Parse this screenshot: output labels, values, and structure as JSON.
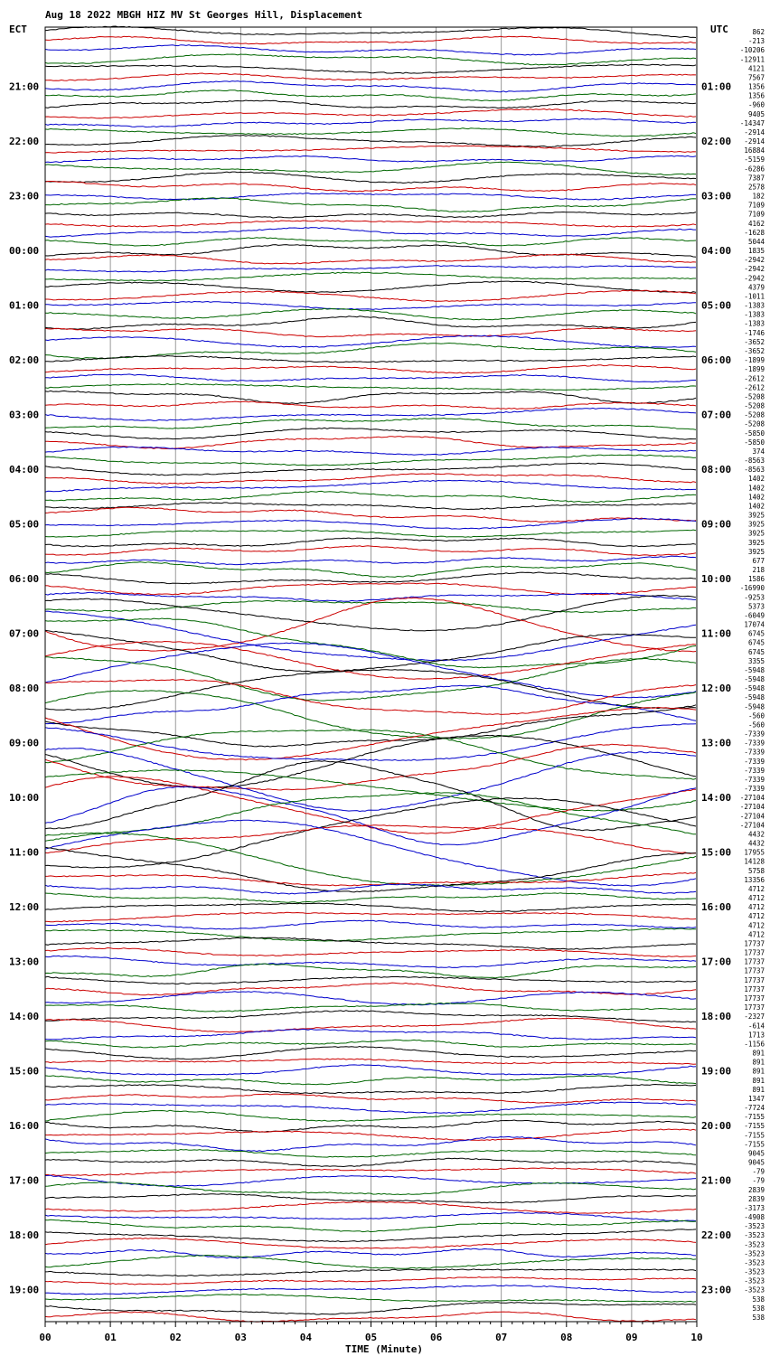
{
  "chart_data": {
    "type": "line",
    "title": "Aug 18 2022 MBGH HIZ MV St Georges Hill, Displacement",
    "xlabel": "TIME (Minute)",
    "x_ticks": [
      "00",
      "01",
      "02",
      "03",
      "04",
      "05",
      "06",
      "07",
      "08",
      "09",
      "10"
    ],
    "xlim": [
      0,
      10
    ],
    "left_axis_label": "ECT",
    "right_axis_label": "UTC",
    "left_time_labels": [
      "21:00",
      "22:00",
      "23:00",
      "00:00",
      "01:00",
      "02:00",
      "03:00",
      "04:00",
      "05:00",
      "06:00",
      "07:00",
      "08:00",
      "09:00",
      "10:00",
      "11:00",
      "12:00",
      "13:00",
      "14:00",
      "15:00",
      "16:00",
      "17:00",
      "18:00",
      "19:00"
    ],
    "right_time_labels": [
      "01:00",
      "02:00",
      "03:00",
      "04:00",
      "05:00",
      "06:00",
      "07:00",
      "08:00",
      "09:00",
      "10:00",
      "11:00",
      "12:00",
      "13:00",
      "14:00",
      "15:00",
      "16:00",
      "17:00",
      "18:00",
      "19:00",
      "20:00",
      "21:00",
      "22:00",
      "23:00"
    ],
    "trace_colors": [
      "#000000",
      "#cc0000",
      "#0000cc",
      "#006600"
    ],
    "trace_offsets": [
      "862",
      "-213",
      "-10206",
      "-12911",
      "4121",
      "7567",
      "1356",
      "1356",
      "-960",
      "9405",
      "-14347",
      "-2914",
      "-2914",
      "16884",
      "-5159",
      "-6286",
      "7387",
      "2578",
      "182",
      "7109",
      "7109",
      "4162",
      "-1628",
      "5044",
      "1835",
      "-2942",
      "-2942",
      "-2942",
      "4379",
      "-1011",
      "-1383",
      "-1383",
      "-1383",
      "-1746",
      "-3652",
      "-3652",
      "-1899",
      "-1899",
      "-2612",
      "-2612",
      "-5208",
      "-5208",
      "-5208",
      "-5208",
      "-5850",
      "-5850",
      "374",
      "-8563",
      "-8563",
      "1402",
      "1402",
      "1402",
      "1402",
      "3925",
      "3925",
      "3925",
      "3925",
      "3925",
      "677",
      "218",
      "1586",
      "-16990",
      "-9253",
      "5373",
      "-6049",
      "17074",
      "6745",
      "6745",
      "6745",
      "3355",
      "-5948",
      "-5948",
      "-5948",
      "-5948",
      "-5948",
      "-560",
      "-560",
      "-7339",
      "-7339",
      "-7339",
      "-7339",
      "-7339",
      "-7339",
      "-7339",
      "-27104",
      "-27104",
      "-27104",
      "-27104",
      "4432",
      "4432",
      "17955",
      "14128",
      "5758",
      "13356",
      "4712",
      "4712",
      "4712",
      "4712",
      "4712",
      "4712",
      "17737",
      "17737",
      "17737",
      "17737",
      "17737",
      "17737",
      "17737",
      "17737",
      "-2327",
      "-614",
      "1713",
      "-1156",
      "891",
      "891",
      "891",
      "891",
      "891",
      "1347",
      "-7724",
      "-7155",
      "-7155",
      "-7155",
      "-7155",
      "9045",
      "9045",
      "-79",
      "-79",
      "2839",
      "2839",
      "-3173",
      "-4908",
      "-3523",
      "-3523",
      "-3523",
      "-3523",
      "-3523",
      "-3523",
      "-3523",
      "-3523",
      "538",
      "538",
      "538"
    ]
  }
}
